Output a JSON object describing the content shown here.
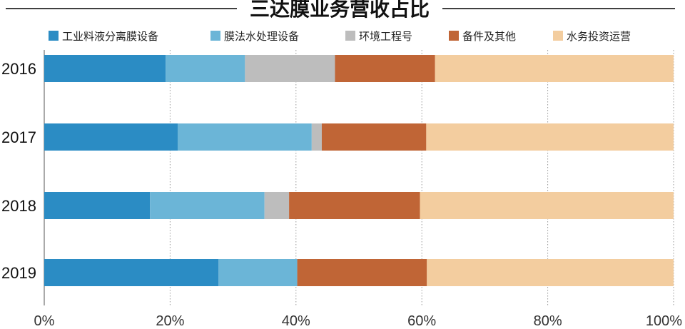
{
  "chart_data": {
    "type": "bar",
    "stacked": true,
    "orientation": "horizontal",
    "title": "三达膜业务营收占比",
    "categories": [
      "2016",
      "2017",
      "2018",
      "2019"
    ],
    "series": [
      {
        "name": "工业料液分离膜设备",
        "color": "#2b8cc4",
        "values": [
          19.3,
          21.2,
          16.8,
          27.7
        ]
      },
      {
        "name": "膜法水处理设备",
        "color": "#6bb5d7",
        "values": [
          12.6,
          21.3,
          18.2,
          12.5
        ]
      },
      {
        "name": "环境工程号",
        "color": "#bdbdbd",
        "values": [
          14.3,
          1.6,
          3.9,
          0
        ]
      },
      {
        "name": "备件及其他",
        "color": "#c06536",
        "values": [
          15.9,
          16.6,
          20.8,
          20.6
        ]
      },
      {
        "name": "水务投资运营",
        "color": "#f3cd9f",
        "values": [
          37.9,
          39.3,
          40.3,
          39.2
        ]
      }
    ],
    "xlim": [
      0,
      100
    ],
    "x_ticks": [
      "0%",
      "20%",
      "40%",
      "60%",
      "80%",
      "100%"
    ],
    "grid": true,
    "legend_position": "top"
  }
}
